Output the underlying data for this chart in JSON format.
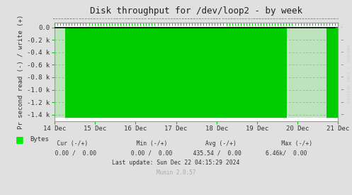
{
  "title": "Disk throughput for /dev/loop2 - by week",
  "ylabel": "Pr second read (-) / write (+)",
  "bg_color": "#e0e0e0",
  "plot_bg_color": "#ffffff",
  "bar_color": "#00ee00",
  "bar_edge_color": "#009900",
  "ylim": [
    -1500,
    80
  ],
  "yticks": [
    0.0,
    -200,
    -400,
    -600,
    -800,
    -1000,
    -1200,
    -1400
  ],
  "ytick_labels": [
    "0.0",
    "-0.2 k",
    "-0.4 k",
    "-0.6 k",
    "-0.8 k",
    "-1.0 k",
    "-1.2 k",
    "-1.4 k"
  ],
  "xstart": 0,
  "xend": 7,
  "xtick_positions": [
    0,
    1,
    2,
    3,
    4,
    5,
    6,
    7
  ],
  "xtick_labels": [
    "14 Dec",
    "15 Dec",
    "16 Dec",
    "17 Dec",
    "18 Dec",
    "19 Dec",
    "20 Dec",
    "21 Dec"
  ],
  "num_bars": 400,
  "bar_bottom": -1450,
  "footer_line1": "     Cur (-/+)              Min (-/+)           Avg (-/+)             Max (-/+)",
  "footer_line2": "   0.00 /  0.00          0.00 /  0.00      435.54 /  0.00       6.46k/  0.00",
  "last_update": "Last update: Sun Dec 22 04:15:29 2024",
  "munin_version": "Munin 2.0.57",
  "legend_label": "Bytes",
  "rrdtool_text": "RRDTOOL / TOBI OETIKER",
  "grid_color": "#bbbbbb",
  "spine_color": "#999999",
  "tick_color": "#00cc00",
  "anomaly_x": 5.75,
  "anomaly_val": -180
}
